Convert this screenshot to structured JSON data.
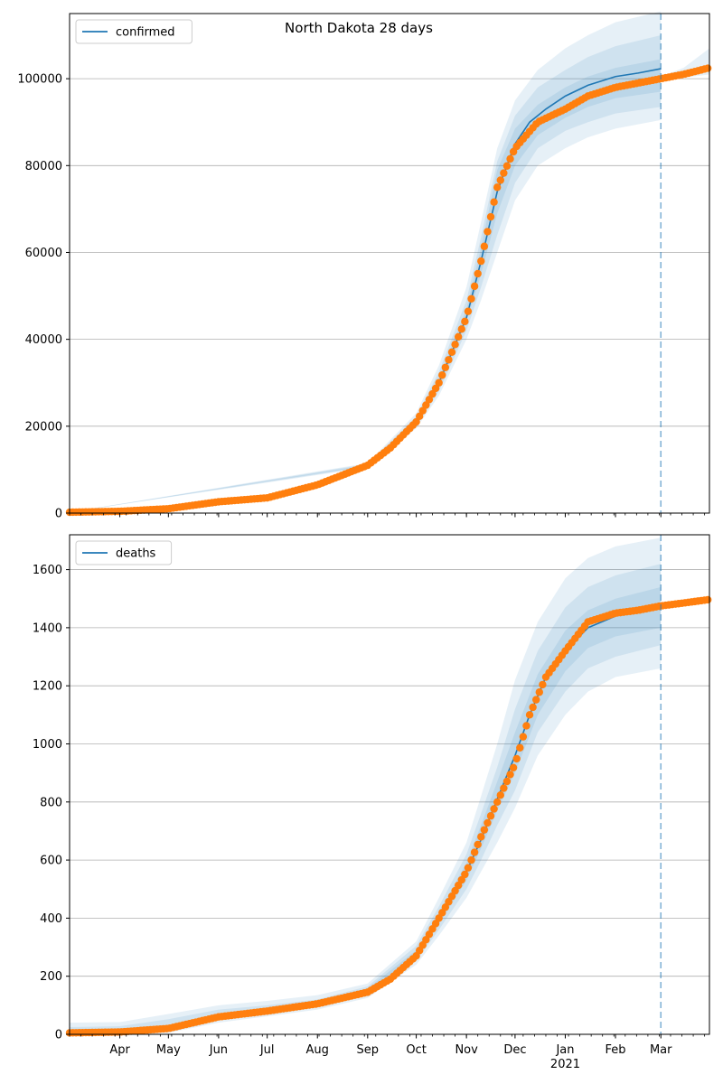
{
  "figure_title": "North Dakota 28 days",
  "colors": {
    "model": "#1f77b4",
    "observed": "#ff7f0e",
    "band": "#1f77b4",
    "grid": "#b0b0b0",
    "forecast_line": "#1f77b4"
  },
  "x_axis": {
    "start": "2020-03-01",
    "end": "2021-03-31",
    "forecast_start": "2021-03-01",
    "month_ticks": [
      {
        "date": "2020-04-01",
        "label": "Apr"
      },
      {
        "date": "2020-05-01",
        "label": "May"
      },
      {
        "date": "2020-06-01",
        "label": "Jun"
      },
      {
        "date": "2020-07-01",
        "label": "Jul"
      },
      {
        "date": "2020-08-01",
        "label": "Aug"
      },
      {
        "date": "2020-09-01",
        "label": "Sep"
      },
      {
        "date": "2020-10-01",
        "label": "Oct"
      },
      {
        "date": "2020-11-01",
        "label": "Nov"
      },
      {
        "date": "2020-12-01",
        "label": "Dec"
      },
      {
        "date": "2021-01-01",
        "label": "Jan"
      },
      {
        "date": "2021-02-01",
        "label": "Feb"
      },
      {
        "date": "2021-03-01",
        "label": "Mar"
      }
    ],
    "year_label": {
      "date": "2021-01-01",
      "label": "2021"
    }
  },
  "chart_data": [
    {
      "type": "line",
      "legend": "confirmed",
      "legend_position": "top-left",
      "grid": "horizontal",
      "ylim": [
        0,
        115000
      ],
      "yticks": [
        {
          "value": 0,
          "label": "0"
        },
        {
          "value": 20000,
          "label": "20000"
        },
        {
          "value": 40000,
          "label": "40000"
        },
        {
          "value": 60000,
          "label": "60000"
        },
        {
          "value": 80000,
          "label": "80000"
        },
        {
          "value": 100000,
          "label": "100000"
        }
      ],
      "observed": {
        "x": [
          "2020-03-01",
          "2020-04-01",
          "2020-05-01",
          "2020-06-01",
          "2020-07-01",
          "2020-08-01",
          "2020-09-01",
          "2020-09-15",
          "2020-10-01",
          "2020-10-15",
          "2020-11-01",
          "2020-11-10",
          "2020-11-20",
          "2020-12-01",
          "2020-12-15",
          "2021-01-01",
          "2021-01-15",
          "2021-02-01",
          "2021-02-15",
          "2021-03-01",
          "2021-03-15",
          "2021-03-31"
        ],
        "y": [
          200,
          400,
          1000,
          2600,
          3500,
          6500,
          11000,
          15000,
          21000,
          30000,
          45000,
          58000,
          75000,
          84000,
          90000,
          93000,
          96000,
          98000,
          99000,
          100000,
          101000,
          102500
        ]
      },
      "model": {
        "x": [
          "2020-03-01",
          "2020-04-01",
          "2020-05-01",
          "2020-06-01",
          "2020-07-01",
          "2020-08-01",
          "2020-09-01",
          "2020-09-15",
          "2020-10-01",
          "2020-10-15",
          "2020-11-01",
          "2020-11-10",
          "2020-11-20",
          "2020-12-01",
          "2020-12-10",
          "2020-12-20",
          "2021-01-01",
          "2021-01-15",
          "2021-02-01",
          "2021-02-15",
          "2021-03-01"
        ],
        "y": [
          200,
          400,
          1000,
          2600,
          3500,
          6500,
          11000,
          15000,
          21000,
          30000,
          45000,
          58000,
          74000,
          85000,
          90000,
          93000,
          96000,
          98500,
          100500,
          101300,
          102300
        ]
      },
      "bands": [
        {
          "x": [
            "2020-03-01",
            "2020-09-01",
            "2020-10-01",
            "2020-10-15",
            "2020-11-01",
            "2020-11-10",
            "2020-11-20",
            "2020-12-01",
            "2020-12-15",
            "2021-01-01",
            "2021-01-15",
            "2021-02-01",
            "2021-03-01"
          ],
          "low": [
            200,
            10500,
            19500,
            27000,
            40000,
            49000,
            60000,
            72000,
            80000,
            84000,
            86500,
            88500,
            90500
          ],
          "high": [
            200,
            11500,
            23000,
            34000,
            52000,
            67000,
            84000,
            95000,
            102000,
            107000,
            110000,
            113000,
            115500
          ]
        },
        {
          "x": [
            "2020-03-01",
            "2020-09-01",
            "2020-10-01",
            "2020-10-15",
            "2020-11-01",
            "2020-11-10",
            "2020-11-20",
            "2020-12-01",
            "2020-12-15",
            "2021-01-01",
            "2021-01-15",
            "2021-02-01",
            "2021-03-01"
          ],
          "low": [
            200,
            10700,
            20000,
            28000,
            42000,
            52000,
            64000,
            76000,
            84000,
            88000,
            90000,
            92000,
            93500
          ],
          "high": [
            200,
            11300,
            22300,
            32500,
            49000,
            63500,
            81000,
            91500,
            98000,
            102000,
            105000,
            107500,
            110000
          ]
        },
        {
          "x": [
            "2020-03-01",
            "2020-09-01",
            "2020-10-01",
            "2020-10-15",
            "2020-11-01",
            "2020-11-10",
            "2020-11-20",
            "2020-12-01",
            "2020-12-15",
            "2021-01-01",
            "2021-01-15",
            "2021-02-01",
            "2021-03-01"
          ],
          "low": [
            200,
            10900,
            20600,
            29000,
            44000,
            55000,
            69000,
            80000,
            87000,
            91000,
            93500,
            95500,
            97000
          ],
          "high": [
            200,
            11100,
            21600,
            31000,
            47000,
            61000,
            79000,
            88500,
            94000,
            98000,
            100500,
            102500,
            104500
          ]
        },
        {
          "x": [
            "2021-03-01",
            "2021-03-15",
            "2021-03-31"
          ],
          "low": [
            99500,
            100200,
            101000
          ],
          "high": [
            100500,
            102500,
            107000
          ]
        }
      ]
    },
    {
      "type": "line",
      "legend": "deaths",
      "legend_position": "top-left",
      "grid": "horizontal",
      "ylim": [
        0,
        1720
      ],
      "yticks": [
        {
          "value": 0,
          "label": "0"
        },
        {
          "value": 200,
          "label": "200"
        },
        {
          "value": 400,
          "label": "400"
        },
        {
          "value": 600,
          "label": "600"
        },
        {
          "value": 800,
          "label": "800"
        },
        {
          "value": 1000,
          "label": "1000"
        },
        {
          "value": 1200,
          "label": "1200"
        },
        {
          "value": 1400,
          "label": "1400"
        },
        {
          "value": 1600,
          "label": "1600"
        }
      ],
      "observed": {
        "x": [
          "2020-03-01",
          "2020-04-01",
          "2020-05-01",
          "2020-06-01",
          "2020-07-01",
          "2020-08-01",
          "2020-09-01",
          "2020-09-15",
          "2020-10-01",
          "2020-10-15",
          "2020-11-01",
          "2020-11-10",
          "2020-11-20",
          "2020-12-01",
          "2020-12-10",
          "2020-12-20",
          "2021-01-01",
          "2021-01-15",
          "2021-02-01",
          "2021-02-15",
          "2021-03-01",
          "2021-03-15",
          "2021-03-31"
        ],
        "y": [
          5,
          8,
          20,
          60,
          80,
          105,
          145,
          190,
          270,
          400,
          560,
          680,
          800,
          930,
          1100,
          1230,
          1320,
          1420,
          1450,
          1460,
          1475,
          1485,
          1497
        ]
      },
      "model": {
        "x": [
          "2020-03-01",
          "2020-04-01",
          "2020-05-01",
          "2020-06-01",
          "2020-07-01",
          "2020-08-01",
          "2020-09-01",
          "2020-09-15",
          "2020-10-01",
          "2020-10-15",
          "2020-11-01",
          "2020-11-10",
          "2020-11-20",
          "2020-12-01",
          "2020-12-10",
          "2020-12-20",
          "2021-01-01",
          "2021-01-15",
          "2021-02-01",
          "2021-02-15",
          "2021-03-01"
        ],
        "y": [
          5,
          8,
          20,
          60,
          80,
          105,
          150,
          195,
          275,
          400,
          560,
          670,
          810,
          960,
          1100,
          1230,
          1320,
          1400,
          1440,
          1460,
          1470
        ]
      },
      "bands": [
        {
          "x": [
            "2020-03-01",
            "2020-04-01",
            "2020-05-01",
            "2020-06-01",
            "2020-07-01",
            "2020-08-01",
            "2020-09-01",
            "2020-10-01",
            "2020-10-15",
            "2020-11-01",
            "2020-11-10",
            "2020-11-20",
            "2020-12-01",
            "2020-12-15",
            "2021-01-01",
            "2021-01-15",
            "2021-02-01",
            "2021-03-01"
          ],
          "low": [
            0,
            0,
            5,
            40,
            62,
            85,
            125,
            240,
            340,
            470,
            560,
            660,
            780,
            960,
            1100,
            1180,
            1230,
            1260
          ],
          "high": [
            40,
            42,
            70,
            100,
            115,
            135,
            175,
            320,
            470,
            660,
            820,
            1000,
            1220,
            1420,
            1570,
            1640,
            1680,
            1710
          ]
        },
        {
          "x": [
            "2020-03-01",
            "2020-04-01",
            "2020-05-01",
            "2020-06-01",
            "2020-07-01",
            "2020-08-01",
            "2020-09-01",
            "2020-10-01",
            "2020-10-15",
            "2020-11-01",
            "2020-11-10",
            "2020-11-20",
            "2020-12-01",
            "2020-12-15",
            "2021-01-01",
            "2021-01-15",
            "2021-02-01",
            "2021-03-01"
          ],
          "low": [
            0,
            2,
            10,
            48,
            70,
            94,
            135,
            252,
            360,
            500,
            600,
            720,
            840,
            1040,
            1180,
            1260,
            1300,
            1340
          ],
          "high": [
            25,
            28,
            52,
            85,
            100,
            120,
            165,
            305,
            440,
            620,
            760,
            920,
            1120,
            1320,
            1470,
            1540,
            1580,
            1620
          ]
        },
        {
          "x": [
            "2020-03-01",
            "2020-04-01",
            "2020-05-01",
            "2020-06-01",
            "2020-07-01",
            "2020-08-01",
            "2020-09-01",
            "2020-10-01",
            "2020-10-15",
            "2020-11-01",
            "2020-11-10",
            "2020-11-20",
            "2020-12-01",
            "2020-12-15",
            "2021-01-01",
            "2021-01-15",
            "2021-02-01",
            "2021-03-01"
          ],
          "low": [
            2,
            5,
            15,
            55,
            76,
            100,
            142,
            262,
            380,
            530,
            640,
            770,
            900,
            1100,
            1250,
            1330,
            1370,
            1400
          ],
          "high": [
            12,
            14,
            32,
            72,
            88,
            112,
            158,
            290,
            420,
            590,
            720,
            870,
            1040,
            1240,
            1390,
            1460,
            1500,
            1540
          ]
        }
      ]
    }
  ]
}
